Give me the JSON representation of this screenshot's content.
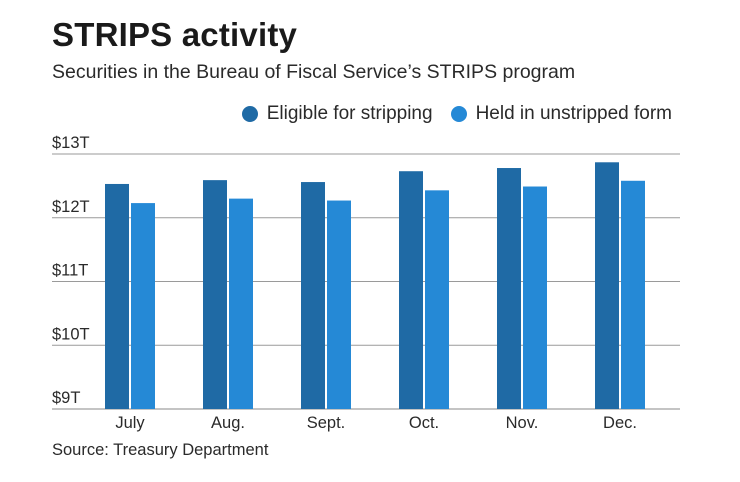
{
  "header": {
    "title": "STRIPS activity",
    "subtitle": "Securities in the Bureau of Fiscal Service’s STRIPS program"
  },
  "source": "Source: Treasury Department",
  "chart_data": {
    "type": "bar",
    "categories": [
      "July",
      "Aug.",
      "Sept.",
      "Oct.",
      "Nov.",
      "Dec."
    ],
    "series": [
      {
        "name": "Eligible for stripping",
        "color": "#1f6aa5",
        "values": [
          12.53,
          12.59,
          12.56,
          12.73,
          12.78,
          12.87
        ]
      },
      {
        "name": "Held in unstripped form",
        "color": "#2589d6",
        "values": [
          12.23,
          12.3,
          12.27,
          12.43,
          12.49,
          12.58
        ]
      }
    ],
    "y_ticks": [
      {
        "value": 9,
        "label": "$9T"
      },
      {
        "value": 10,
        "label": "$10T"
      },
      {
        "value": 11,
        "label": "$11T"
      },
      {
        "value": 12,
        "label": "$12T"
      },
      {
        "value": 13,
        "label": "$13T"
      }
    ],
    "ylim": [
      9,
      13
    ],
    "grid": true,
    "legend_position": "top-right",
    "title": "",
    "xlabel": "",
    "ylabel": ""
  }
}
